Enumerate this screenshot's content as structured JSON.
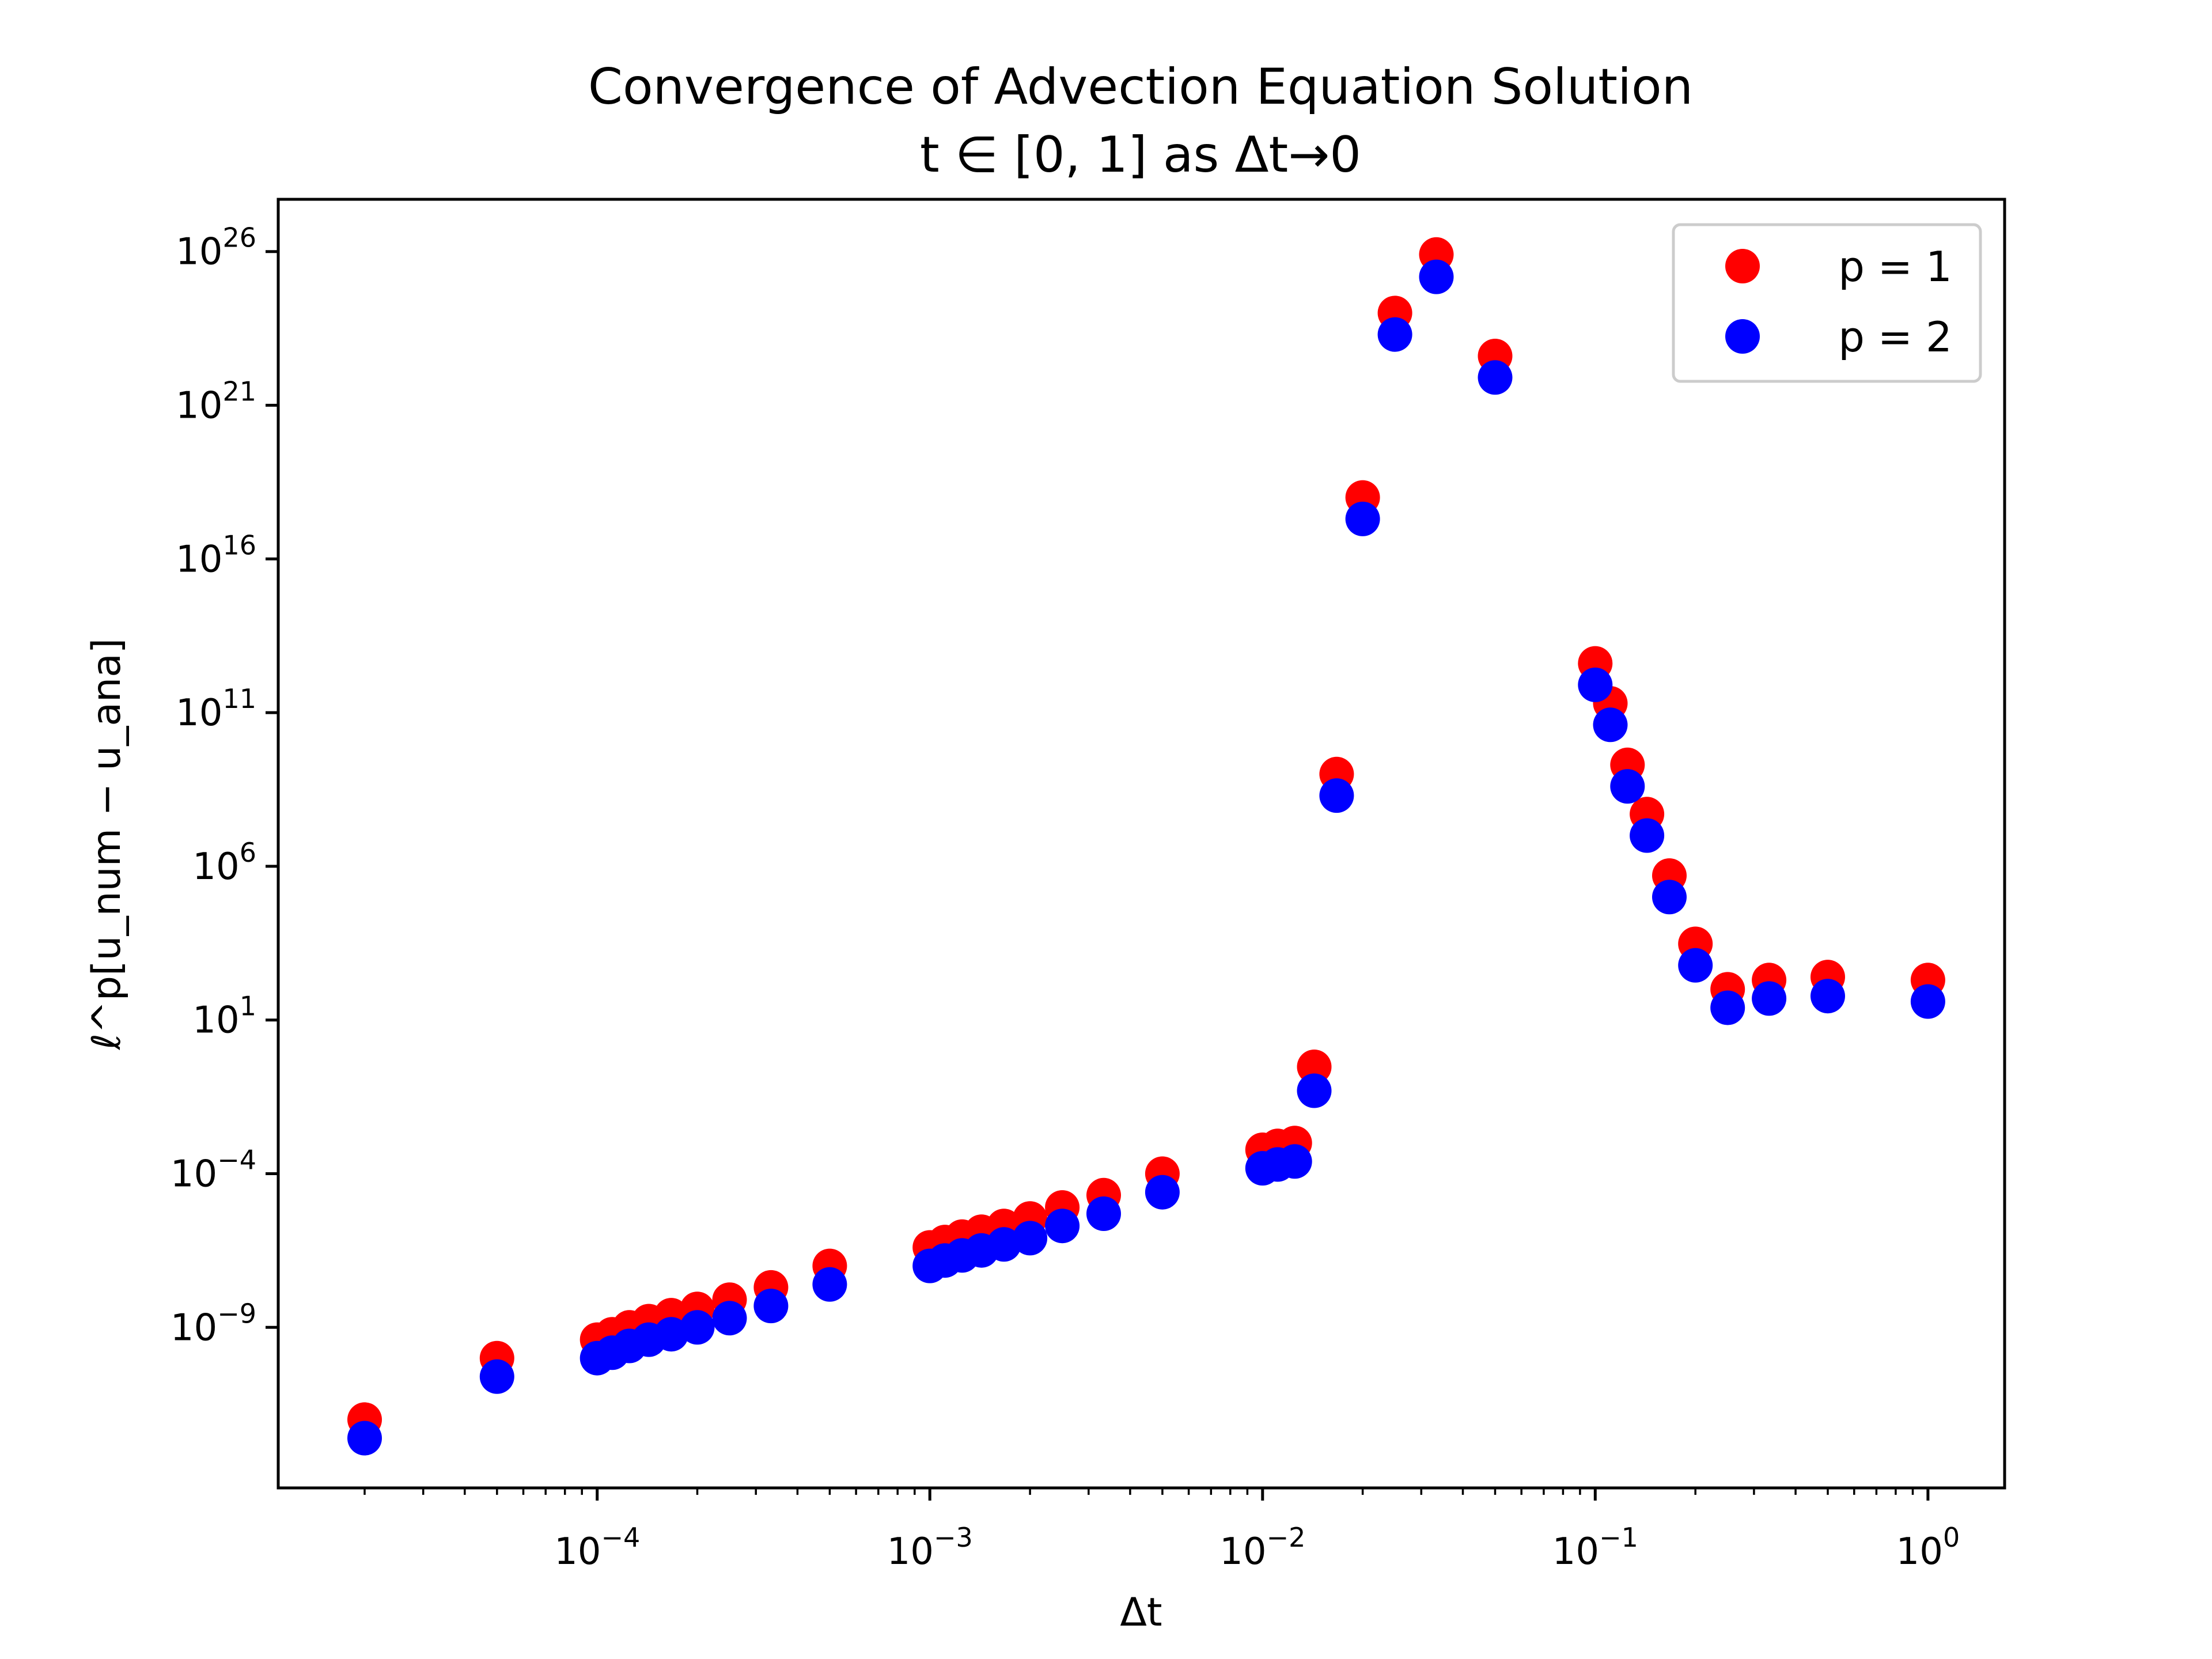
{
  "chart_data": {
    "type": "scatter",
    "title": "Convergence of Advection Equation Solution",
    "subtitle": "t ∈ [0, 1] as Δt→0",
    "xlabel": "Δt",
    "ylabel": "ℓ^p[u_num − u_ana]",
    "xscale": "log",
    "yscale": "log",
    "xlim": [
      1.1e-05,
      1.7
    ],
    "ylim": [
      6e-15,
      5e+27
    ],
    "legend_position": "top-right",
    "grid": false,
    "x_tick_labels": [
      {
        "base": "10",
        "exp": "−4"
      },
      {
        "base": "10",
        "exp": "−3"
      },
      {
        "base": "10",
        "exp": "−2"
      },
      {
        "base": "10",
        "exp": "−1"
      },
      {
        "base": "10",
        "exp": "0"
      }
    ],
    "y_tick_labels": [
      {
        "base": "10",
        "exp": "−9"
      },
      {
        "base": "10",
        "exp": "−4"
      },
      {
        "base": "10",
        "exp": "1"
      },
      {
        "base": "10",
        "exp": "6"
      },
      {
        "base": "10",
        "exp": "11"
      },
      {
        "base": "10",
        "exp": "16"
      },
      {
        "base": "10",
        "exp": "21"
      },
      {
        "base": "10",
        "exp": "26"
      }
    ],
    "series": [
      {
        "name": "p = 1",
        "color": "#ff0000",
        "points": [
          [
            2e-05,
            1e-12
          ],
          [
            5e-05,
            1e-10
          ],
          [
            0.0001,
            4e-10
          ],
          [
            0.000111,
            6e-10
          ],
          [
            0.000125,
            1e-09
          ],
          [
            0.000143,
            1.6e-09
          ],
          [
            0.000167,
            2.5e-09
          ],
          [
            0.0002,
            4e-09
          ],
          [
            0.00025,
            8e-09
          ],
          [
            0.000333,
            2e-08
          ],
          [
            0.0005,
            1e-07
          ],
          [
            0.001,
            4e-07
          ],
          [
            0.00111,
            6e-07
          ],
          [
            0.00125,
            9e-07
          ],
          [
            0.00143,
            1.3e-06
          ],
          [
            0.00167,
            2e-06
          ],
          [
            0.002,
            3.5e-06
          ],
          [
            0.0025,
            8e-06
          ],
          [
            0.00333,
            2e-05
          ],
          [
            0.005,
            0.0001
          ],
          [
            0.01,
            0.0006
          ],
          [
            0.0111,
            0.0008
          ],
          [
            0.0125,
            0.001
          ],
          [
            0.0143,
            0.3
          ],
          [
            0.0167,
            1000000000.0
          ],
          [
            0.02,
            1e+18
          ],
          [
            0.025,
            1e+24
          ],
          [
            0.0333,
            8e+25
          ],
          [
            0.05,
            4e+22
          ],
          [
            0.1,
            4000000000000.0
          ],
          [
            0.111,
            200000000000.0
          ],
          [
            0.125,
            2000000000.0
          ],
          [
            0.143,
            50000000.0
          ],
          [
            0.167,
            500000.0
          ],
          [
            0.2,
            3000.0
          ],
          [
            0.25,
            100.0
          ],
          [
            0.333,
            200.0
          ],
          [
            0.5,
            250.0
          ],
          [
            1.0,
            200.0
          ]
        ]
      },
      {
        "name": "p = 2",
        "color": "#0000ff",
        "points": [
          [
            2e-05,
            2.5e-13
          ],
          [
            5e-05,
            2.5e-11
          ],
          [
            0.0001,
            1e-10
          ],
          [
            0.000111,
            1.5e-10
          ],
          [
            0.000125,
            2.5e-10
          ],
          [
            0.000143,
            4e-10
          ],
          [
            0.000167,
            6e-10
          ],
          [
            0.0002,
            1e-09
          ],
          [
            0.00025,
            2e-09
          ],
          [
            0.000333,
            5e-09
          ],
          [
            0.0005,
            2.5e-08
          ],
          [
            0.001,
            1e-07
          ],
          [
            0.00111,
            1.5e-07
          ],
          [
            0.00125,
            2.2e-07
          ],
          [
            0.00143,
            3.2e-07
          ],
          [
            0.00167,
            5e-07
          ],
          [
            0.002,
            8e-07
          ],
          [
            0.0025,
            2e-06
          ],
          [
            0.00333,
            5e-06
          ],
          [
            0.005,
            2.5e-05
          ],
          [
            0.01,
            0.00015
          ],
          [
            0.0111,
            0.0002
          ],
          [
            0.0125,
            0.00025
          ],
          [
            0.0143,
            0.05
          ],
          [
            0.0167,
            200000000.0
          ],
          [
            0.02,
            2e+17
          ],
          [
            0.025,
            2e+23
          ],
          [
            0.0333,
            1.5e+25
          ],
          [
            0.05,
            8e+21
          ],
          [
            0.1,
            800000000000.0
          ],
          [
            0.111,
            40000000000.0
          ],
          [
            0.125,
            400000000.0
          ],
          [
            0.143,
            10000000.0
          ],
          [
            0.167,
            100000.0
          ],
          [
            0.2,
            600.0
          ],
          [
            0.25,
            25.0
          ],
          [
            0.333,
            50.0
          ],
          [
            0.5,
            60.0
          ],
          [
            1.0,
            40.0
          ]
        ]
      }
    ]
  }
}
